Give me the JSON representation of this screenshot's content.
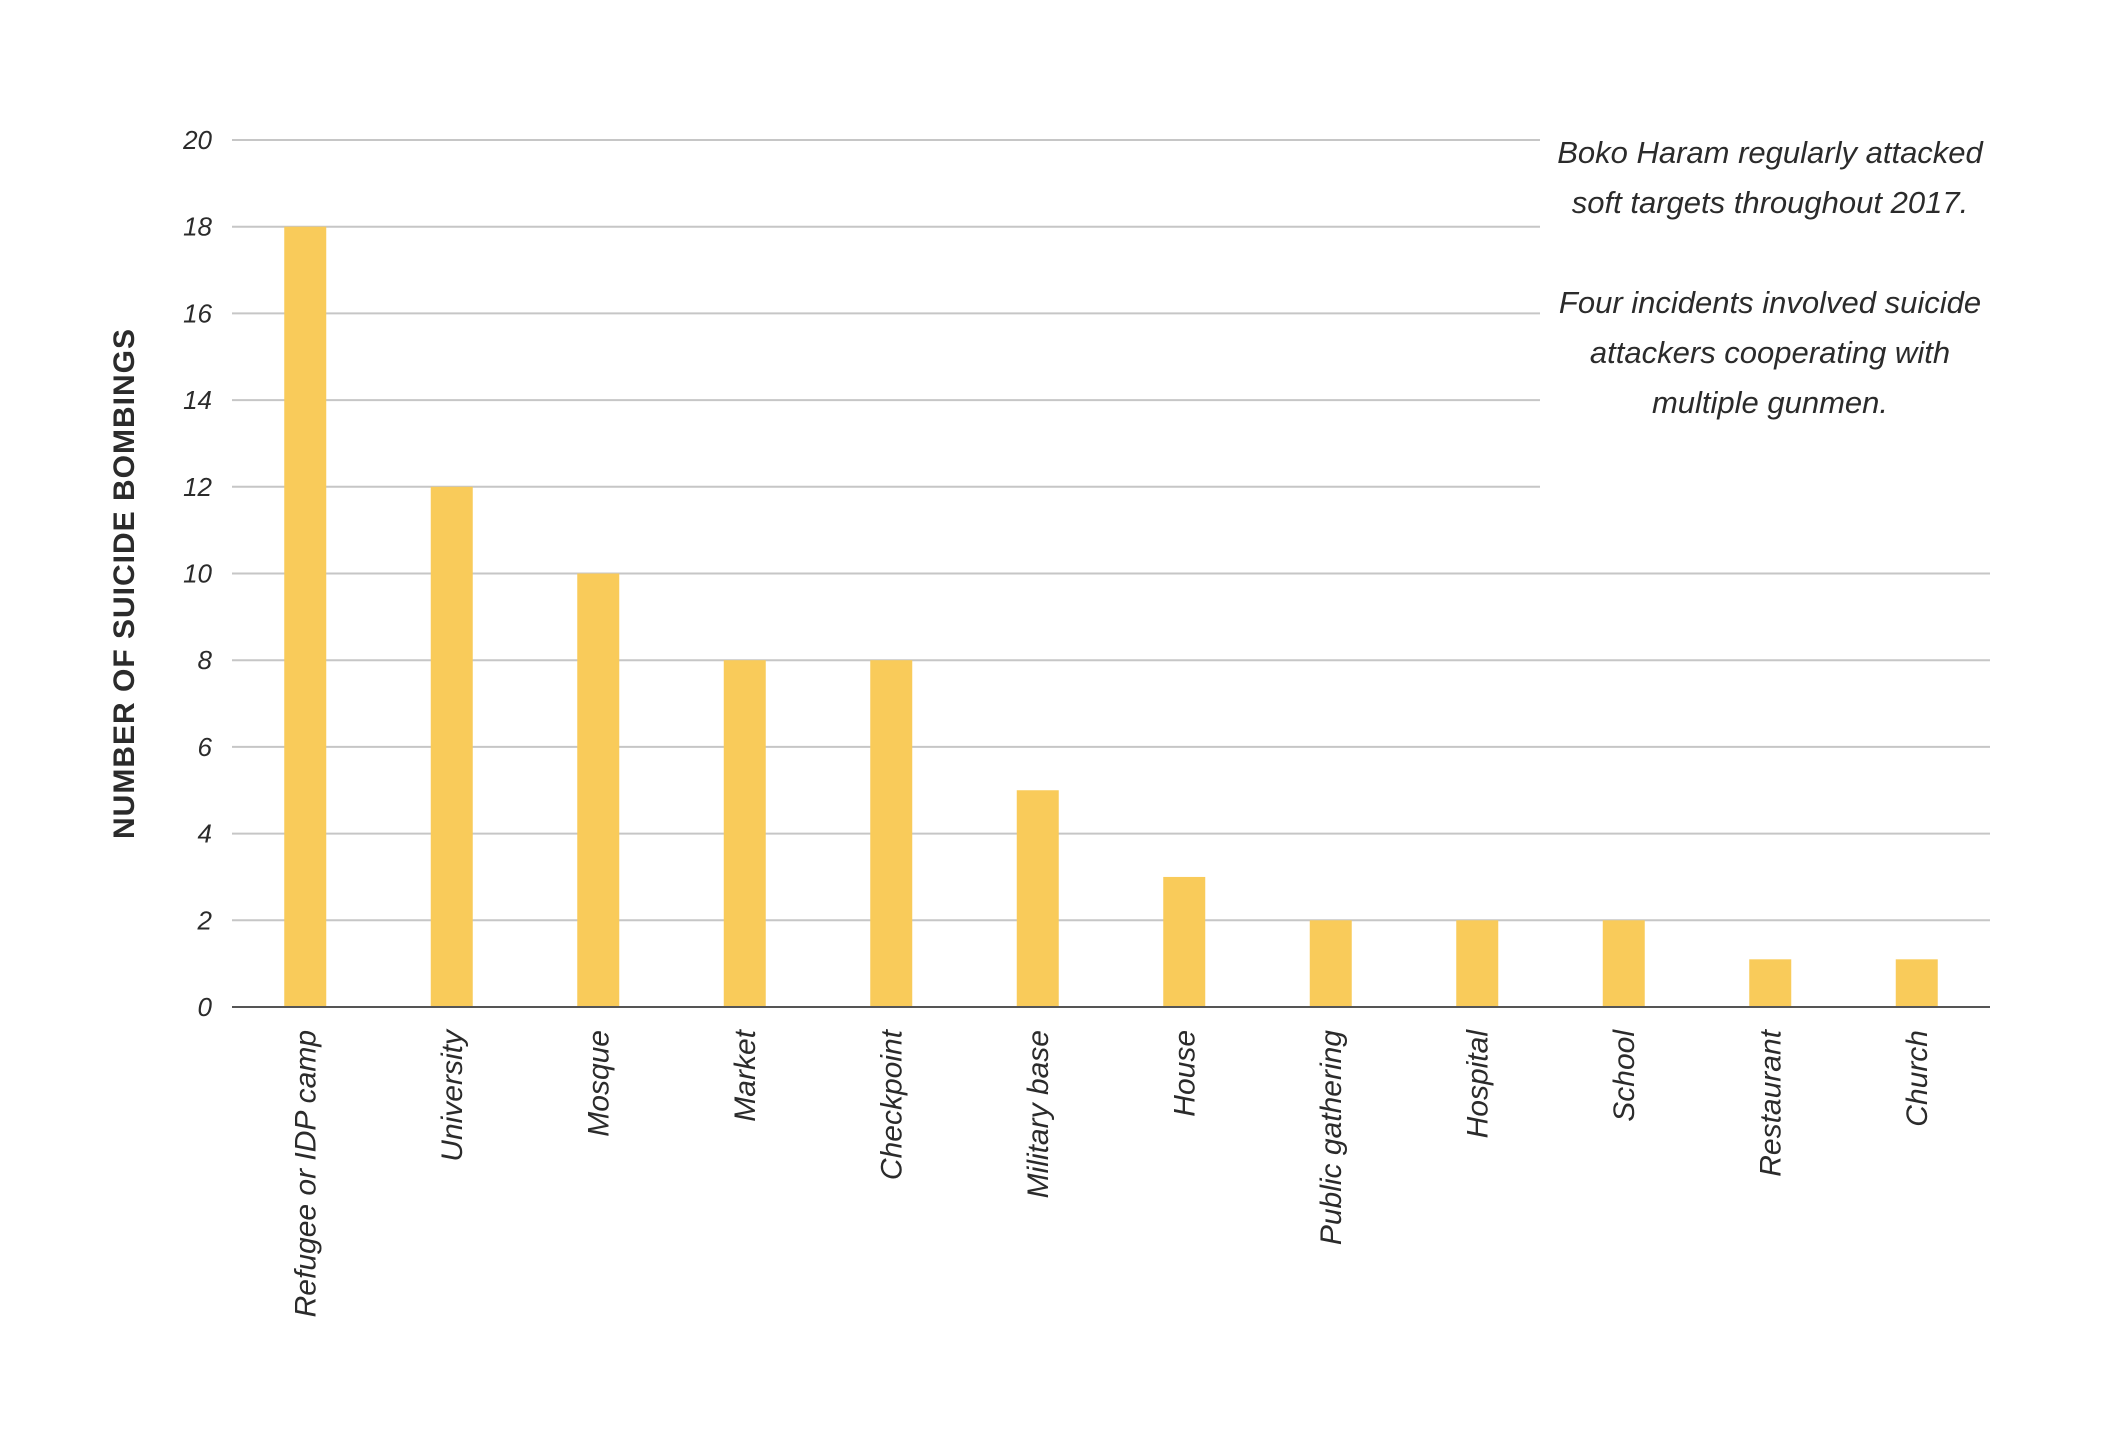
{
  "chart_data": {
    "type": "bar",
    "title": "",
    "xlabel": "",
    "ylabel": "NUMBER OF SUICIDE BOMBINGS",
    "ylim": [
      0,
      20
    ],
    "yticks": [
      0,
      2,
      4,
      6,
      8,
      10,
      12,
      14,
      16,
      18,
      20
    ],
    "grid": true,
    "bar_color": "#f9cb5a",
    "categories": [
      "Refugee or IDP camp",
      "University",
      "Mosque",
      "Market",
      "Checkpoint",
      "Military base",
      "House",
      "Public gathering",
      "Hospital",
      "School",
      "Restaurant",
      "Church"
    ],
    "values": [
      18,
      12,
      10,
      8,
      8,
      5,
      3,
      2,
      2,
      2,
      1.1,
      1.1
    ],
    "annotations": [
      "Boko Haram regularly attacked soft targets throughout 2017.",
      "Four incidents involved suicide attackers cooperating with multiple gunmen."
    ]
  }
}
